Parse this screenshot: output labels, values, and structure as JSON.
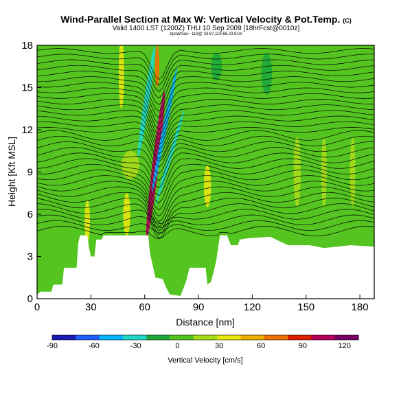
{
  "title": "Wind-Parallel Section at Max W: Vertical Velocity & Pot.Temp.",
  "title_mark": "(C)",
  "subtitle": "Valid 1400 LST (1200Z) THU 10 Sep 2009 [18hrFcst@0010z]",
  "subsubtitle": "bpsWmax~ 119@ 33.6?,119.66,23.91m",
  "chart_data": {
    "type": "heatmap",
    "xlabel": "Distance [nm]",
    "ylabel": "Height [Kft MSL]",
    "xlim": [
      0,
      188
    ],
    "ylim": [
      0,
      18
    ],
    "xticks": [
      "0",
      "30",
      "60",
      "90",
      "120",
      "150",
      "180"
    ],
    "yticks": [
      "0",
      "3",
      "6",
      "9",
      "12",
      "15",
      "18"
    ],
    "colorbar": {
      "label": "Vertical Velocity [cm/s]",
      "min": -90,
      "max": 130,
      "ticks": [
        "-90",
        "-60",
        "-30",
        "0",
        "30",
        "60",
        "90",
        "120"
      ],
      "colors": [
        "#1a1ab4",
        "#2060ff",
        "#00b4ff",
        "#20d8c8",
        "#1ea83a",
        "#54c420",
        "#a8dc18",
        "#e8e810",
        "#f0b000",
        "#f07000",
        "#e01e00",
        "#b4005a",
        "#7a0066"
      ]
    },
    "terrain_profile_kft": [
      [
        0,
        0.3
      ],
      [
        2,
        0.5
      ],
      [
        8,
        0.5
      ],
      [
        9,
        1.0
      ],
      [
        14,
        1.0
      ],
      [
        15,
        2.2
      ],
      [
        22,
        2.2
      ],
      [
        23,
        4.0
      ],
      [
        24,
        4.5
      ],
      [
        28,
        4.5
      ],
      [
        29,
        3.6
      ],
      [
        30,
        3.0
      ],
      [
        32,
        3.0
      ],
      [
        33,
        4.2
      ],
      [
        36,
        4.2
      ],
      [
        37,
        4.5
      ],
      [
        62,
        4.5
      ],
      [
        63,
        3.2
      ],
      [
        66,
        1.5
      ],
      [
        70,
        1.4
      ],
      [
        72,
        0.8
      ],
      [
        74,
        0.3
      ],
      [
        80,
        0.2
      ],
      [
        83,
        1.2
      ],
      [
        85,
        2.2
      ],
      [
        94,
        2.2
      ],
      [
        95,
        1.0
      ],
      [
        97,
        1.2
      ],
      [
        99,
        2.2
      ],
      [
        100,
        2.8
      ],
      [
        102,
        4.5
      ],
      [
        106,
        4.5
      ],
      [
        108,
        3.8
      ],
      [
        112,
        3.8
      ],
      [
        113,
        4.2
      ],
      [
        118,
        4.3
      ],
      [
        130,
        4.4
      ],
      [
        140,
        3.8
      ],
      [
        152,
        3.8
      ],
      [
        160,
        3.6
      ],
      [
        175,
        3.8
      ],
      [
        188,
        3.7
      ]
    ],
    "velocity_features": [
      {
        "x": 66,
        "z": 9.5,
        "w": 1.8,
        "h": 10.5,
        "value": 110,
        "tilt": 0.12
      },
      {
        "x": 67,
        "z": 16.5,
        "w": 1.2,
        "h": 3,
        "value": 75,
        "tilt": 0
      },
      {
        "x": 61,
        "z": 14,
        "w": 1.5,
        "h": 8,
        "value": -35,
        "tilt": 0.15
      },
      {
        "x": 71,
        "z": 12,
        "w": 1.2,
        "h": 9,
        "value": -40,
        "tilt": 0.2
      },
      {
        "x": 74,
        "z": 10,
        "w": 1.0,
        "h": 7,
        "value": -30,
        "tilt": 0.3
      },
      {
        "x": 47,
        "z": 16,
        "w": 1.5,
        "h": 5,
        "value": 40,
        "tilt": 0
      },
      {
        "x": 50,
        "z": 6,
        "w": 2.0,
        "h": 3,
        "value": 40,
        "tilt": 0
      },
      {
        "x": 28,
        "z": 5.5,
        "w": 1.5,
        "h": 3,
        "value": 40,
        "tilt": 0
      },
      {
        "x": 52,
        "z": 9.5,
        "w": 5,
        "h": 2,
        "value": 25,
        "tilt": 0
      },
      {
        "x": 95,
        "z": 8,
        "w": 2,
        "h": 3,
        "value": 30,
        "tilt": 0
      },
      {
        "x": 145,
        "z": 9,
        "w": 2,
        "h": 5,
        "value": 25,
        "tilt": 0
      },
      {
        "x": 160,
        "z": 9,
        "w": 1.5,
        "h": 5,
        "value": 25,
        "tilt": 0
      },
      {
        "x": 176,
        "z": 9,
        "w": 1.5,
        "h": 5,
        "value": 25,
        "tilt": 0
      },
      {
        "x": 128,
        "z": 16,
        "w": 3,
        "h": 3,
        "value": -12,
        "tilt": 0
      },
      {
        "x": 100,
        "z": 16.5,
        "w": 3,
        "h": 2,
        "value": -10,
        "tilt": 0
      }
    ],
    "theta_contours_kft": [
      4.8,
      5.2,
      5.6,
      6.0,
      6.4,
      6.8,
      7.2,
      7.6,
      8.0,
      8.4,
      8.8,
      9.2,
      9.6,
      10.0,
      10.4,
      10.8,
      11.2,
      11.6,
      12.0,
      12.4,
      12.8,
      13.2,
      13.6,
      14.0,
      14.4,
      14.8,
      15.2,
      15.6,
      16.0,
      16.4,
      16.8,
      17.2,
      17.6
    ]
  }
}
